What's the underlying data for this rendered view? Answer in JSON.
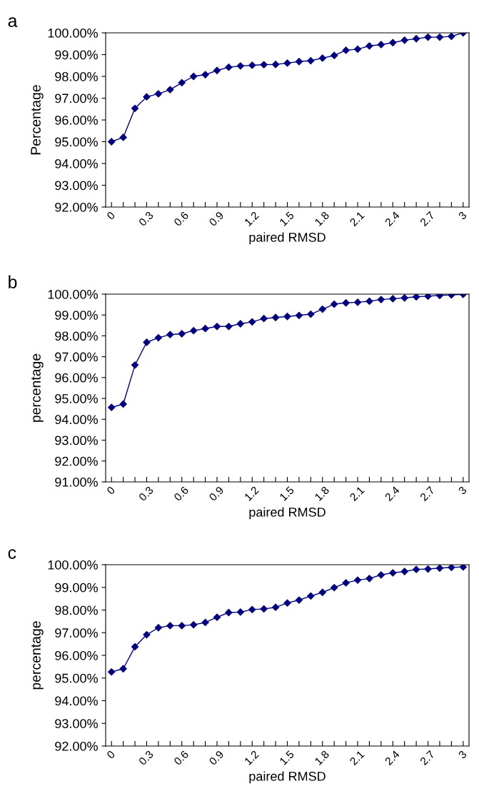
{
  "chart_data": [
    {
      "type": "line",
      "title": "a",
      "xlabel": "paired RMSD",
      "ylabel": "Percentage",
      "categories": [
        "0",
        null,
        null,
        "0.3",
        null,
        null,
        "0.6",
        null,
        null,
        "0.9",
        null,
        null,
        "1.2",
        null,
        null,
        "1.5",
        null,
        null,
        "1.8",
        null,
        null,
        "2.1",
        null,
        null,
        "2.4",
        null,
        null,
        "2.7",
        null,
        null,
        "3"
      ],
      "series": [
        {
          "color": "#000080",
          "values": [
            95.0,
            95.2,
            96.53,
            97.06,
            97.2,
            97.39,
            97.71,
            98.0,
            98.08,
            98.27,
            98.42,
            98.48,
            98.51,
            98.54,
            98.55,
            98.61,
            98.68,
            98.72,
            98.84,
            98.96,
            99.2,
            99.25,
            99.4,
            99.46,
            99.55,
            99.66,
            99.73,
            99.8,
            99.8,
            99.84,
            100.0
          ]
        }
      ],
      "ylim": [
        92,
        100
      ],
      "yticks": [
        {
          "value": 92,
          "label": "92.00%"
        },
        {
          "value": 93,
          "label": "93.00%"
        },
        {
          "value": 94,
          "label": "94.00%"
        },
        {
          "value": 95,
          "label": "95.00%"
        },
        {
          "value": 96,
          "label": "96.00%"
        },
        {
          "value": 97,
          "label": "97.00%"
        },
        {
          "value": 98,
          "label": "98.00%"
        },
        {
          "value": 99,
          "label": "99.00%"
        },
        {
          "value": 100,
          "label": "100.00%"
        }
      ],
      "marker": "diamond",
      "line_style": "solid",
      "grid": false,
      "legend": false
    },
    {
      "type": "line",
      "title": "b",
      "xlabel": "paired RMSD",
      "ylabel": "percentage",
      "categories": [
        "0",
        null,
        null,
        "0.3",
        null,
        null,
        "0.6",
        null,
        null,
        "0.9",
        null,
        null,
        "1.2",
        null,
        null,
        "1.5",
        null,
        null,
        "1.8",
        null,
        null,
        "2.1",
        null,
        null,
        "2.4",
        null,
        null,
        "2.7",
        null,
        null,
        "3"
      ],
      "series": [
        {
          "color": "#000080",
          "values": [
            94.57,
            94.73,
            96.6,
            97.69,
            97.91,
            98.06,
            98.1,
            98.25,
            98.35,
            98.45,
            98.45,
            98.58,
            98.67,
            98.83,
            98.88,
            98.93,
            98.98,
            99.04,
            99.28,
            99.52,
            99.58,
            99.61,
            99.66,
            99.74,
            99.78,
            99.82,
            99.87,
            99.9,
            99.94,
            99.96,
            99.99
          ]
        }
      ],
      "ylim": [
        91,
        100
      ],
      "yticks": [
        {
          "value": 91,
          "label": "91.00%"
        },
        {
          "value": 92,
          "label": "92.00%"
        },
        {
          "value": 93,
          "label": "93.00%"
        },
        {
          "value": 94,
          "label": "94.00%"
        },
        {
          "value": 95,
          "label": "95.00%"
        },
        {
          "value": 96,
          "label": "96.00%"
        },
        {
          "value": 97,
          "label": "97.00%"
        },
        {
          "value": 98,
          "label": "98.00%"
        },
        {
          "value": 99,
          "label": "99.00%"
        },
        {
          "value": 100,
          "label": "100.00%"
        }
      ],
      "marker": "diamond",
      "line_style": "solid",
      "grid": false,
      "legend": false
    },
    {
      "type": "line",
      "title": "c",
      "xlabel": "paired RMSD",
      "ylabel": "percentage",
      "categories": [
        "0",
        null,
        null,
        "0.3",
        null,
        null,
        "0.6",
        null,
        null,
        "0.9",
        null,
        null,
        "1.2",
        null,
        null,
        "1.5",
        null,
        null,
        "1.8",
        null,
        null,
        "2.1",
        null,
        null,
        "2.4",
        null,
        null,
        "2.7",
        null,
        null,
        "3"
      ],
      "series": [
        {
          "color": "#000080",
          "values": [
            95.27,
            95.41,
            96.38,
            96.91,
            97.22,
            97.31,
            97.31,
            97.35,
            97.45,
            97.68,
            97.89,
            97.91,
            98.02,
            98.05,
            98.12,
            98.31,
            98.44,
            98.62,
            98.78,
            98.99,
            99.2,
            99.32,
            99.39,
            99.55,
            99.64,
            99.7,
            99.79,
            99.81,
            99.85,
            99.88,
            99.9
          ]
        }
      ],
      "ylim": [
        92,
        100
      ],
      "yticks": [
        {
          "value": 92,
          "label": "92.00%"
        },
        {
          "value": 93,
          "label": "93.00%"
        },
        {
          "value": 94,
          "label": "94.00%"
        },
        {
          "value": 95,
          "label": "95.00%"
        },
        {
          "value": 96,
          "label": "96.00%"
        },
        {
          "value": 97,
          "label": "97.00%"
        },
        {
          "value": 98,
          "label": "98.00%"
        },
        {
          "value": 99,
          "label": "99.00%"
        },
        {
          "value": 100,
          "label": "100.00%"
        }
      ],
      "marker": "diamond",
      "line_style": "solid",
      "grid": false,
      "legend": false
    }
  ]
}
